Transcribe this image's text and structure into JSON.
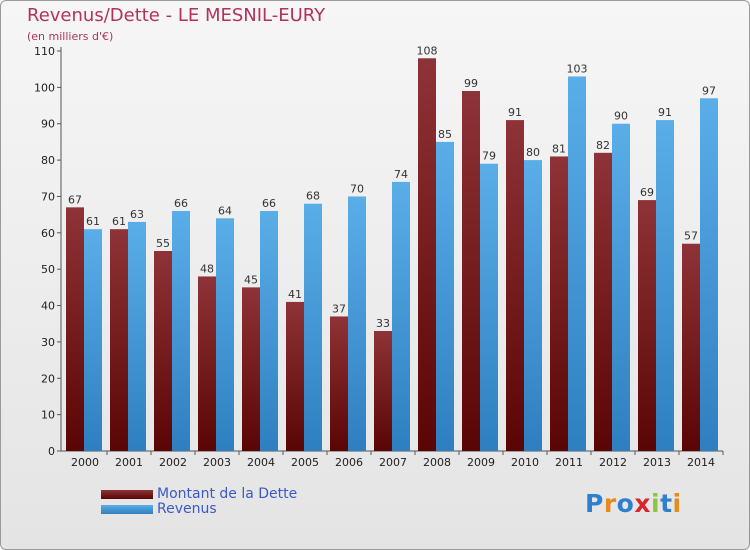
{
  "header": {
    "title": "Revenus/Dette - LE MESNIL-EURY",
    "subtitle": "(en milliers d'€)"
  },
  "legend": [
    {
      "label": "Montant de la Dette"
    },
    {
      "label": "Revenus"
    }
  ],
  "logo": "Proxiti",
  "colors": {
    "dette_top": "#8e3337",
    "dette_bottom": "#5a0505",
    "revenus_top": "#5aaee8",
    "revenus_bottom": "#2e7fbf",
    "title": "#b3315e",
    "legend_text": "#3b58c8"
  },
  "chart_data": {
    "type": "bar",
    "title": "Revenus/Dette - LE MESNIL-EURY",
    "subtitle": "(en milliers d'€)",
    "categories": [
      "2000",
      "2001",
      "2002",
      "2003",
      "2004",
      "2005",
      "2006",
      "2007",
      "2008",
      "2009",
      "2010",
      "2011",
      "2012",
      "2013",
      "2014"
    ],
    "series": [
      {
        "name": "Montant de la Dette",
        "values": [
          67,
          61,
          55,
          48,
          45,
          41,
          37,
          33,
          108,
          99,
          91,
          81,
          82,
          69,
          57
        ]
      },
      {
        "name": "Revenus",
        "values": [
          61,
          63,
          66,
          64,
          66,
          68,
          70,
          74,
          85,
          79,
          80,
          103,
          90,
          91,
          97
        ]
      }
    ],
    "ylim": [
      0,
      110
    ],
    "yticks": [
      0,
      10,
      20,
      30,
      40,
      50,
      60,
      70,
      80,
      90,
      100,
      110
    ],
    "grid": false,
    "legend_position": "bottom-left"
  }
}
